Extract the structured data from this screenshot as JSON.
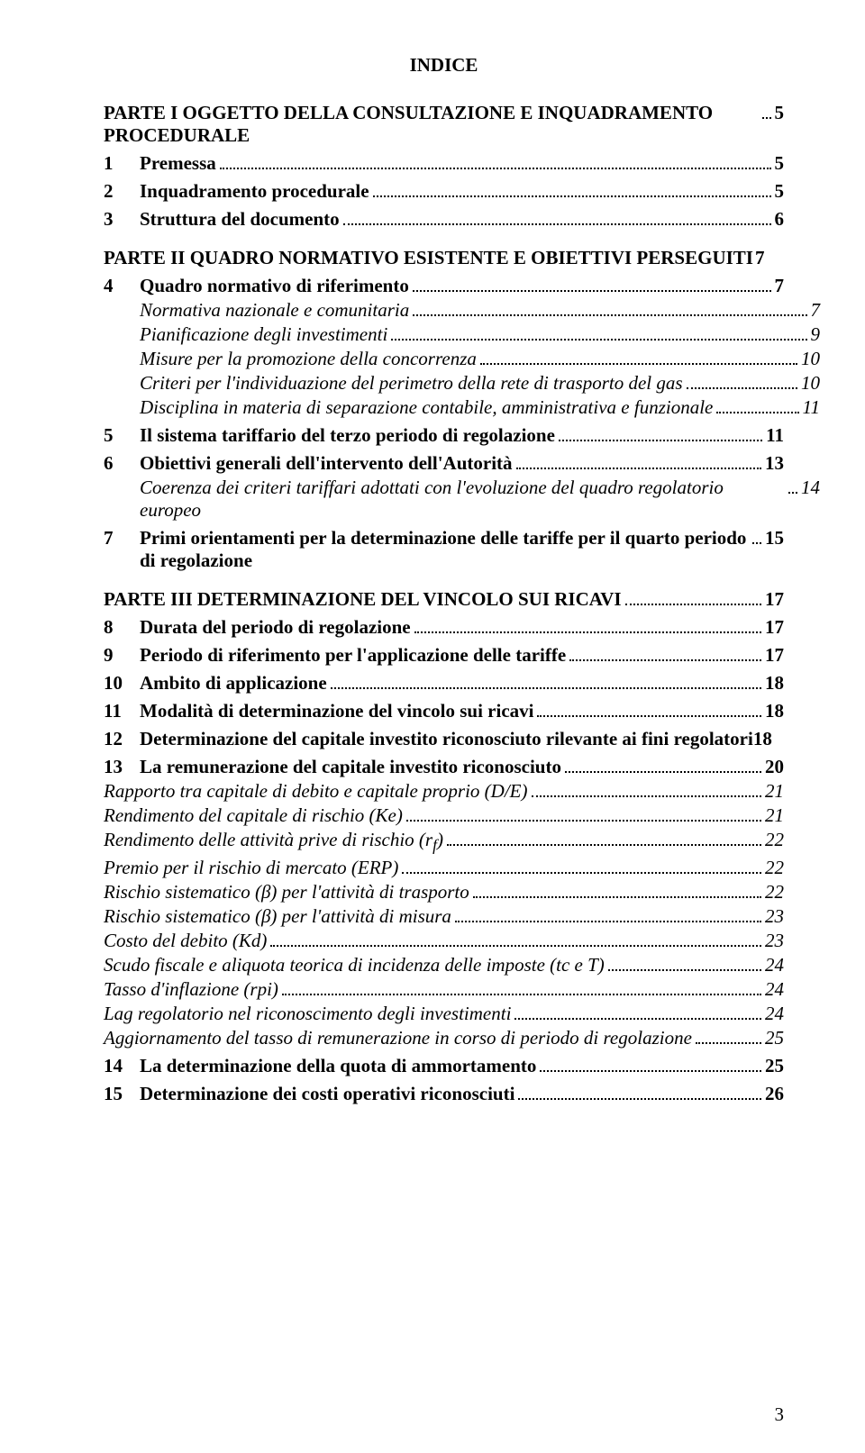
{
  "title": "INDICE",
  "parts": [
    {
      "label": "PARTE I  OGGETTO DELLA CONSULTAZIONE E INQUADRAMENTO PROCEDURALE",
      "page": "5",
      "items": [
        {
          "num": "1",
          "text": "Premessa",
          "page": "5",
          "style": "bold"
        },
        {
          "num": "2",
          "text": "Inquadramento procedurale",
          "page": "5",
          "style": "bold"
        },
        {
          "num": "3",
          "text": "Struttura del documento",
          "page": "6",
          "style": "bold"
        }
      ]
    },
    {
      "label": "PARTE II  QUADRO NORMATIVO ESISTENTE E OBIETTIVI PERSEGUITI",
      "page": "7",
      "items": [
        {
          "num": "4",
          "text": "Quadro normativo di riferimento",
          "page": "7",
          "style": "bold"
        },
        {
          "text": "Normativa nazionale e comunitaria",
          "page": "7",
          "style": "italic"
        },
        {
          "text": "Pianificazione degli investimenti",
          "page": "9",
          "style": "italic"
        },
        {
          "text": "Misure per la promozione della concorrenza",
          "page": "10",
          "style": "italic"
        },
        {
          "text": "Criteri per l'individuazione del perimetro della rete di trasporto del gas",
          "page": "10",
          "style": "italic"
        },
        {
          "text": "Disciplina in materia di separazione contabile, amministrativa e funzionale",
          "page": "11",
          "style": "italic"
        },
        {
          "num": "5",
          "text": "Il sistema tariffario del terzo periodo di regolazione",
          "page": "11",
          "style": "bold"
        },
        {
          "num": "6",
          "text": "Obiettivi generali dell'intervento dell'Autorità",
          "page": "13",
          "style": "bold"
        },
        {
          "text": "Coerenza dei criteri tariffari adottati con l'evoluzione del quadro regolatorio europeo",
          "page": "14",
          "style": "italic"
        },
        {
          "num": "7",
          "text": "Primi orientamenti per la determinazione delle tariffe per il quarto periodo di regolazione",
          "page": "15",
          "style": "bold"
        }
      ]
    },
    {
      "label": "PARTE III  DETERMINAZIONE DEL VINCOLO SUI RICAVI",
      "page": "17",
      "items": [
        {
          "num": "8",
          "text": "Durata del periodo di regolazione",
          "page": "17",
          "style": "bold"
        },
        {
          "num": "9",
          "text": "Periodo di riferimento per l'applicazione delle tariffe",
          "page": "17",
          "style": "bold"
        },
        {
          "num": "10",
          "text": "Ambito di applicazione",
          "page": "18",
          "style": "bold"
        },
        {
          "num": "11",
          "text": "Modalità di determinazione del vincolo sui ricavi",
          "page": "18",
          "style": "bold"
        },
        {
          "num": "12",
          "text": "Determinazione del capitale investito riconosciuto rilevante ai fini regolatori",
          "page": "18",
          "style": "bold"
        },
        {
          "num": "13",
          "text": "La remunerazione del capitale investito riconosciuto",
          "page": "20",
          "style": "bold"
        },
        {
          "text": "Rapporto tra capitale di debito e capitale proprio (D/E)",
          "page": "21",
          "style": "italic-noindent"
        },
        {
          "text": "Rendimento del capitale di rischio (Ke)",
          "page": "21",
          "style": "italic-noindent"
        },
        {
          "text": "Rendimento delle attività prive di rischio (r_f)",
          "page": "22",
          "style": "italic-noindent",
          "special": "rf"
        },
        {
          "text": "Premio per il rischio di mercato (ERP)",
          "page": "22",
          "style": "italic-noindent"
        },
        {
          "text": "Rischio sistematico (β) per l'attività di trasporto",
          "page": "22",
          "style": "italic-noindent"
        },
        {
          "text": "Rischio sistematico (β) per l'attività di misura",
          "page": "23",
          "style": "italic-noindent"
        },
        {
          "text": "Costo del debito (Kd)",
          "page": "23",
          "style": "italic-noindent"
        },
        {
          "text": "Scudo fiscale e aliquota teorica di incidenza delle imposte (tc e T)",
          "page": "24",
          "style": "italic-noindent"
        },
        {
          "text": "Tasso d'inflazione (rpi)",
          "page": "24",
          "style": "italic-noindent"
        },
        {
          "text": "Lag regolatorio nel riconoscimento degli investimenti",
          "page": "24",
          "style": "italic-noindent"
        },
        {
          "text": "Aggiornamento del tasso di remunerazione in corso di periodo di regolazione",
          "page": "25",
          "style": "italic-noindent"
        },
        {
          "num": "14",
          "text": "La determinazione della quota di ammortamento",
          "page": "25",
          "style": "bold"
        },
        {
          "num": "15",
          "text": "Determinazione dei costi operativi riconosciuti",
          "page": "26",
          "style": "bold"
        }
      ]
    }
  ],
  "pageNumber": "3"
}
